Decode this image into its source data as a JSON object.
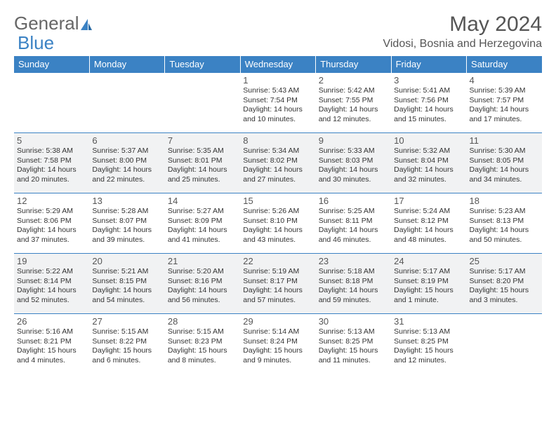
{
  "brand": {
    "part1": "General",
    "part2": "Blue"
  },
  "title": "May 2024",
  "location": "Vidosi, Bosnia and Herzegovina",
  "day_headers": [
    "Sunday",
    "Monday",
    "Tuesday",
    "Wednesday",
    "Thursday",
    "Friday",
    "Saturday"
  ],
  "colors": {
    "header_bg": "#3b82c4",
    "header_text": "#ffffff",
    "border": "#3b82c4",
    "alt_row_bg": "#f1f2f3",
    "text": "#333333",
    "title_text": "#555555"
  },
  "weeks": [
    [
      null,
      null,
      null,
      {
        "n": "1",
        "sr": "Sunrise: 5:43 AM",
        "ss": "Sunset: 7:54 PM",
        "dl1": "Daylight: 14 hours",
        "dl2": "and 10 minutes."
      },
      {
        "n": "2",
        "sr": "Sunrise: 5:42 AM",
        "ss": "Sunset: 7:55 PM",
        "dl1": "Daylight: 14 hours",
        "dl2": "and 12 minutes."
      },
      {
        "n": "3",
        "sr": "Sunrise: 5:41 AM",
        "ss": "Sunset: 7:56 PM",
        "dl1": "Daylight: 14 hours",
        "dl2": "and 15 minutes."
      },
      {
        "n": "4",
        "sr": "Sunrise: 5:39 AM",
        "ss": "Sunset: 7:57 PM",
        "dl1": "Daylight: 14 hours",
        "dl2": "and 17 minutes."
      }
    ],
    [
      {
        "n": "5",
        "sr": "Sunrise: 5:38 AM",
        "ss": "Sunset: 7:58 PM",
        "dl1": "Daylight: 14 hours",
        "dl2": "and 20 minutes."
      },
      {
        "n": "6",
        "sr": "Sunrise: 5:37 AM",
        "ss": "Sunset: 8:00 PM",
        "dl1": "Daylight: 14 hours",
        "dl2": "and 22 minutes."
      },
      {
        "n": "7",
        "sr": "Sunrise: 5:35 AM",
        "ss": "Sunset: 8:01 PM",
        "dl1": "Daylight: 14 hours",
        "dl2": "and 25 minutes."
      },
      {
        "n": "8",
        "sr": "Sunrise: 5:34 AM",
        "ss": "Sunset: 8:02 PM",
        "dl1": "Daylight: 14 hours",
        "dl2": "and 27 minutes."
      },
      {
        "n": "9",
        "sr": "Sunrise: 5:33 AM",
        "ss": "Sunset: 8:03 PM",
        "dl1": "Daylight: 14 hours",
        "dl2": "and 30 minutes."
      },
      {
        "n": "10",
        "sr": "Sunrise: 5:32 AM",
        "ss": "Sunset: 8:04 PM",
        "dl1": "Daylight: 14 hours",
        "dl2": "and 32 minutes."
      },
      {
        "n": "11",
        "sr": "Sunrise: 5:30 AM",
        "ss": "Sunset: 8:05 PM",
        "dl1": "Daylight: 14 hours",
        "dl2": "and 34 minutes."
      }
    ],
    [
      {
        "n": "12",
        "sr": "Sunrise: 5:29 AM",
        "ss": "Sunset: 8:06 PM",
        "dl1": "Daylight: 14 hours",
        "dl2": "and 37 minutes."
      },
      {
        "n": "13",
        "sr": "Sunrise: 5:28 AM",
        "ss": "Sunset: 8:07 PM",
        "dl1": "Daylight: 14 hours",
        "dl2": "and 39 minutes."
      },
      {
        "n": "14",
        "sr": "Sunrise: 5:27 AM",
        "ss": "Sunset: 8:09 PM",
        "dl1": "Daylight: 14 hours",
        "dl2": "and 41 minutes."
      },
      {
        "n": "15",
        "sr": "Sunrise: 5:26 AM",
        "ss": "Sunset: 8:10 PM",
        "dl1": "Daylight: 14 hours",
        "dl2": "and 43 minutes."
      },
      {
        "n": "16",
        "sr": "Sunrise: 5:25 AM",
        "ss": "Sunset: 8:11 PM",
        "dl1": "Daylight: 14 hours",
        "dl2": "and 46 minutes."
      },
      {
        "n": "17",
        "sr": "Sunrise: 5:24 AM",
        "ss": "Sunset: 8:12 PM",
        "dl1": "Daylight: 14 hours",
        "dl2": "and 48 minutes."
      },
      {
        "n": "18",
        "sr": "Sunrise: 5:23 AM",
        "ss": "Sunset: 8:13 PM",
        "dl1": "Daylight: 14 hours",
        "dl2": "and 50 minutes."
      }
    ],
    [
      {
        "n": "19",
        "sr": "Sunrise: 5:22 AM",
        "ss": "Sunset: 8:14 PM",
        "dl1": "Daylight: 14 hours",
        "dl2": "and 52 minutes."
      },
      {
        "n": "20",
        "sr": "Sunrise: 5:21 AM",
        "ss": "Sunset: 8:15 PM",
        "dl1": "Daylight: 14 hours",
        "dl2": "and 54 minutes."
      },
      {
        "n": "21",
        "sr": "Sunrise: 5:20 AM",
        "ss": "Sunset: 8:16 PM",
        "dl1": "Daylight: 14 hours",
        "dl2": "and 56 minutes."
      },
      {
        "n": "22",
        "sr": "Sunrise: 5:19 AM",
        "ss": "Sunset: 8:17 PM",
        "dl1": "Daylight: 14 hours",
        "dl2": "and 57 minutes."
      },
      {
        "n": "23",
        "sr": "Sunrise: 5:18 AM",
        "ss": "Sunset: 8:18 PM",
        "dl1": "Daylight: 14 hours",
        "dl2": "and 59 minutes."
      },
      {
        "n": "24",
        "sr": "Sunrise: 5:17 AM",
        "ss": "Sunset: 8:19 PM",
        "dl1": "Daylight: 15 hours",
        "dl2": "and 1 minute."
      },
      {
        "n": "25",
        "sr": "Sunrise: 5:17 AM",
        "ss": "Sunset: 8:20 PM",
        "dl1": "Daylight: 15 hours",
        "dl2": "and 3 minutes."
      }
    ],
    [
      {
        "n": "26",
        "sr": "Sunrise: 5:16 AM",
        "ss": "Sunset: 8:21 PM",
        "dl1": "Daylight: 15 hours",
        "dl2": "and 4 minutes."
      },
      {
        "n": "27",
        "sr": "Sunrise: 5:15 AM",
        "ss": "Sunset: 8:22 PM",
        "dl1": "Daylight: 15 hours",
        "dl2": "and 6 minutes."
      },
      {
        "n": "28",
        "sr": "Sunrise: 5:15 AM",
        "ss": "Sunset: 8:23 PM",
        "dl1": "Daylight: 15 hours",
        "dl2": "and 8 minutes."
      },
      {
        "n": "29",
        "sr": "Sunrise: 5:14 AM",
        "ss": "Sunset: 8:24 PM",
        "dl1": "Daylight: 15 hours",
        "dl2": "and 9 minutes."
      },
      {
        "n": "30",
        "sr": "Sunrise: 5:13 AM",
        "ss": "Sunset: 8:25 PM",
        "dl1": "Daylight: 15 hours",
        "dl2": "and 11 minutes."
      },
      {
        "n": "31",
        "sr": "Sunrise: 5:13 AM",
        "ss": "Sunset: 8:25 PM",
        "dl1": "Daylight: 15 hours",
        "dl2": "and 12 minutes."
      },
      null
    ]
  ]
}
